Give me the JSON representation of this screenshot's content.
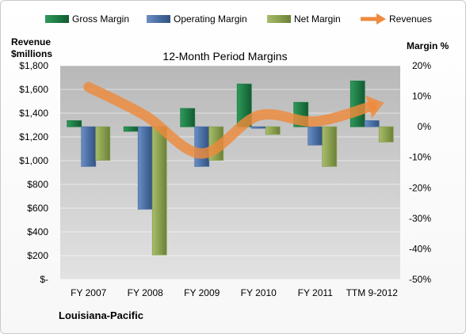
{
  "chart_data": {
    "type": "bar",
    "title": "12-Month Period Margins",
    "categories": [
      "FY 2007",
      "FY 2008",
      "FY 2009",
      "FY 2010",
      "FY 2011",
      "TTM 9-2012"
    ],
    "series": [
      {
        "name": "Gross Margin",
        "axis": "right",
        "values": [
          2,
          -1.5,
          6,
          14,
          8,
          15
        ]
      },
      {
        "name": "Operating Margin",
        "axis": "right",
        "values": [
          -13,
          -27,
          -13,
          -0.5,
          -6,
          2
        ]
      },
      {
        "name": "Net Margin",
        "axis": "right",
        "values": [
          -11,
          -42,
          -11,
          -2.5,
          -13,
          -5
        ]
      },
      {
        "name": "Revenues",
        "axis": "left",
        "type": "line",
        "values": [
          1620,
          1380,
          1060,
          1380,
          1330,
          1460
        ]
      }
    ],
    "y_left": {
      "label_line1": "Revenue",
      "label_line2": "$millions",
      "range": [
        0,
        1800
      ],
      "ticks": [
        0,
        200,
        400,
        600,
        800,
        1000,
        1200,
        1400,
        1600,
        1800
      ],
      "tick_labels": [
        "$-",
        "$200",
        "$400",
        "$600",
        "$800",
        "$1,000",
        "$1,200",
        "$1,400",
        "$1,600",
        "$1,800"
      ]
    },
    "y_right": {
      "label": "Margin %",
      "range": [
        -50,
        20
      ],
      "ticks": [
        20,
        10,
        0,
        -10,
        -20,
        -30,
        -40,
        -50
      ],
      "tick_labels": [
        "20%",
        "10%",
        "0%",
        "-10%",
        "-20%",
        "-30%",
        "-40%",
        "-50%"
      ]
    },
    "legend_position": "top",
    "grid": true,
    "colors": {
      "gross": "#1e7b45",
      "operating": "#4a6fa5",
      "net": "#8aa04f",
      "revenues": "#ee8a3c"
    }
  },
  "footer": {
    "company": "Louisiana-Pacific"
  }
}
